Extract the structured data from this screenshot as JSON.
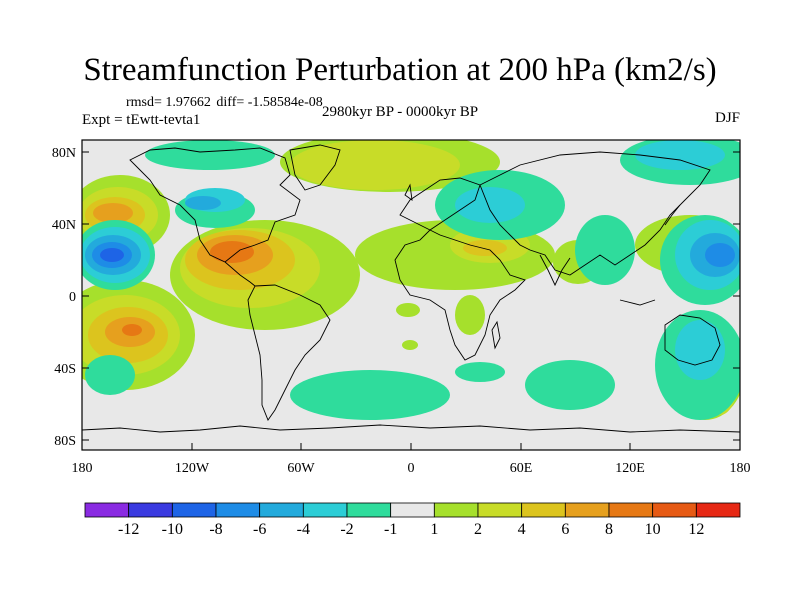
{
  "title": "Streamfunction Perturbation at 200 hPa (km2/s)",
  "stats": {
    "rmsd": "rmsd= 1.97662",
    "diff": "diff= -1.58584e-08"
  },
  "experiment": "Expt = tEwtt-tevta1",
  "period": "2980kyr BP - 0000kyr BP",
  "season": "DJF",
  "y_axis": [
    "80N",
    "40N",
    "0",
    "40S",
    "80S"
  ],
  "x_axis": [
    "180",
    "120W",
    "60W",
    "0",
    "60E",
    "120E",
    "180"
  ],
  "colorbar": {
    "labels": [
      "-12",
      "-10",
      "-8",
      "-6",
      "-4",
      "-2",
      "-1",
      "1",
      "2",
      "4",
      "6",
      "8",
      "10",
      "12"
    ],
    "colors": [
      "#8a2be2",
      "#3a3ae0",
      "#1e64e6",
      "#1e8ce6",
      "#23aadc",
      "#2ccdd6",
      "#2fdc9c",
      "#e8e8e8",
      "#a6e02c",
      "#c8dc28",
      "#dcc41e",
      "#e6a01e",
      "#e67814",
      "#e65a14",
      "#e62814"
    ]
  }
}
